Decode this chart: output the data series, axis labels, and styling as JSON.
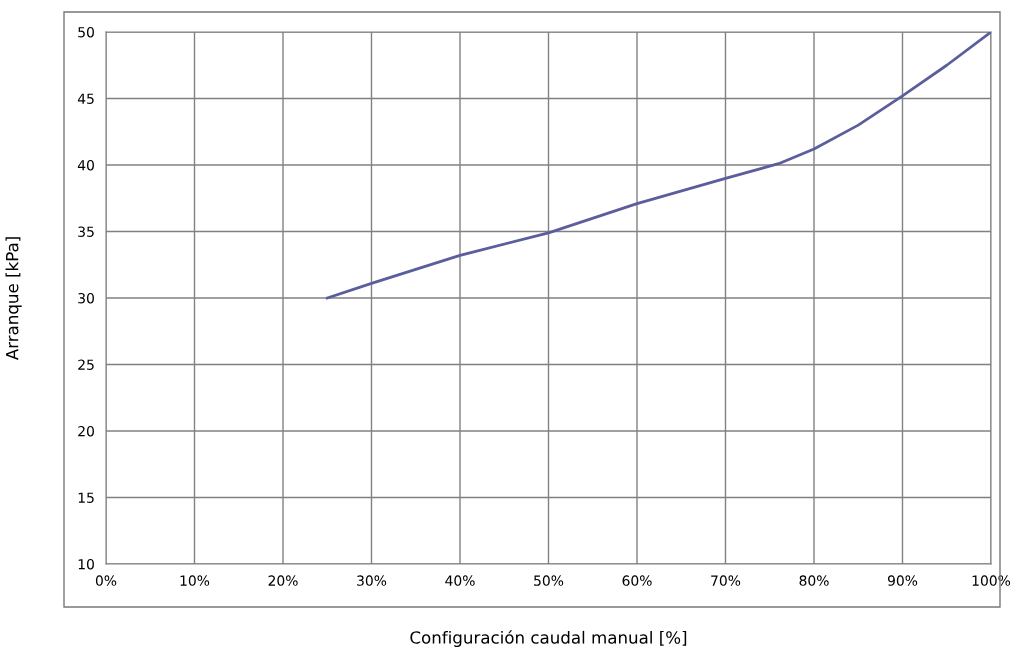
{
  "chart_data": {
    "type": "line",
    "xlabel": "Configuración caudal manual [%]",
    "ylabel": "Arranque [kPa]",
    "x": [
      25,
      30,
      40,
      50,
      60,
      70,
      76,
      80,
      85,
      90,
      95,
      100
    ],
    "series": [
      {
        "color": "#5b5e9c",
        "values": [
          30,
          31.1,
          33.2,
          34.9,
          37.1,
          39,
          40.1,
          41.2,
          43,
          45.2,
          47.5,
          50
        ]
      }
    ],
    "xlim": [
      0,
      100
    ],
    "ylim": [
      10,
      50
    ],
    "xticks": [
      {
        "value": 0,
        "label": "0%"
      },
      {
        "value": 10,
        "label": "10%"
      },
      {
        "value": 20,
        "label": "20%"
      },
      {
        "value": 30,
        "label": "30%"
      },
      {
        "value": 40,
        "label": "40%"
      },
      {
        "value": 50,
        "label": "50%"
      },
      {
        "value": 60,
        "label": "60%"
      },
      {
        "value": 70,
        "label": "70%"
      },
      {
        "value": 80,
        "label": "80%"
      },
      {
        "value": 90,
        "label": "90%"
      },
      {
        "value": 100,
        "label": "100%"
      }
    ],
    "yticks": [
      10,
      15,
      20,
      25,
      30,
      35,
      40,
      45,
      50
    ],
    "grid": true,
    "legend": false,
    "marker": "none",
    "line_style": "solid"
  }
}
